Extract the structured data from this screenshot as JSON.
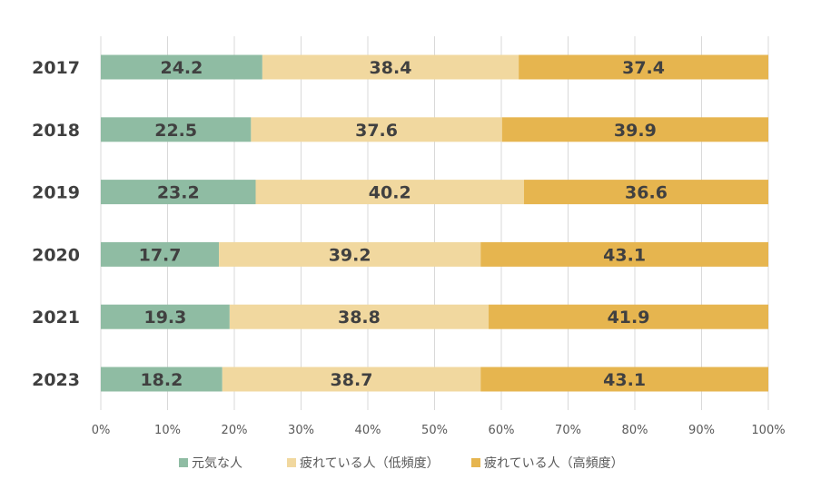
{
  "chart_data": {
    "type": "bar",
    "orientation": "horizontal",
    "stacked": "percent",
    "categories": [
      "2017",
      "2018",
      "2019",
      "2020",
      "2021",
      "2023"
    ],
    "series": [
      {
        "name": "元気な人",
        "color": "#8fbca3",
        "values": [
          24.2,
          22.5,
          23.2,
          17.7,
          19.3,
          18.2
        ]
      },
      {
        "name": "疲れている人（低頻度）",
        "color": "#f1d89f",
        "values": [
          38.4,
          37.6,
          40.2,
          39.2,
          38.8,
          38.7
        ]
      },
      {
        "name": "疲れている人（高頻度）",
        "color": "#e6b54f",
        "values": [
          37.4,
          39.9,
          36.6,
          43.1,
          41.9,
          43.1
        ]
      }
    ],
    "xlim": [
      0,
      100
    ],
    "xticks": [
      "0%",
      "10%",
      "20%",
      "30%",
      "40%",
      "50%",
      "60%",
      "70%",
      "80%",
      "90%",
      "100%"
    ],
    "grid": "vertical",
    "legend_position": "bottom",
    "title": "",
    "xlabel": "",
    "ylabel": ""
  }
}
